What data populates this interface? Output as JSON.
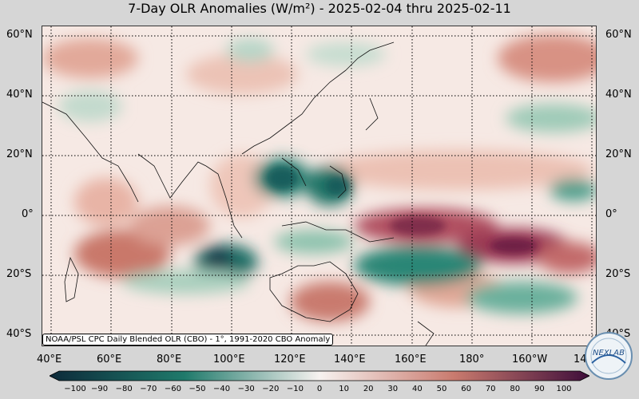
{
  "header": {
    "title": "7-Day OLR Anomalies (W/m²) - 2025-02-04 thru 2025-02-11"
  },
  "map": {
    "lat_labels": [
      "60°N",
      "40°N",
      "20°N",
      "0°",
      "20°S",
      "40°S"
    ],
    "lon_labels": [
      "40°E",
      "60°E",
      "80°E",
      "100°E",
      "120°E",
      "140°E",
      "160°E",
      "180°",
      "160°W",
      "14"
    ],
    "source_note": "NOAA/PSL CPC Daily Blended OLR (CBO) - 1°, 1991-2020 CBO Anomaly"
  },
  "colorbar": {
    "ticks": [
      "−100",
      "−90",
      "−80",
      "−70",
      "−60",
      "−50",
      "−40",
      "−30",
      "−20",
      "−10",
      "0",
      "10",
      "20",
      "30",
      "40",
      "50",
      "60",
      "70",
      "80",
      "90",
      "100"
    ],
    "colors": {
      "low": "#0d2a3a",
      "mid_low": "#1f7a6b",
      "neutral": "#f7f2f0",
      "mid_high": "#c97a6e",
      "high": "#3e0d3a"
    }
  },
  "logo": {
    "text": "NEXLAB"
  }
}
